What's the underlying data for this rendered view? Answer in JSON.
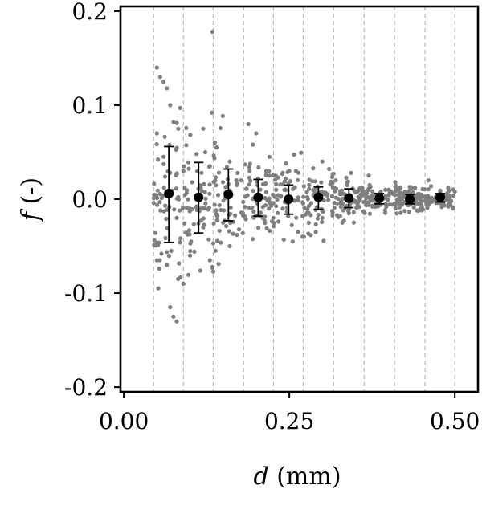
{
  "chart_data": {
    "type": "scatter",
    "xlabel": {
      "var": "d",
      "unit": "(mm)"
    },
    "ylabel": {
      "var": "f",
      "unit": "(-)"
    },
    "xlim": [
      -0.005,
      0.535
    ],
    "ylim": [
      -0.205,
      0.205
    ],
    "x_ticks": [
      {
        "value": 0.0,
        "label": "0.00"
      },
      {
        "value": 0.25,
        "label": "0.25"
      },
      {
        "value": 0.5,
        "label": "0.50"
      }
    ],
    "y_ticks": [
      {
        "value": 0.2,
        "label": "0.2"
      },
      {
        "value": 0.1,
        "label": "0.1"
      },
      {
        "value": 0.0,
        "label": "0.0"
      },
      {
        "value": -0.1,
        "label": "-0.1"
      },
      {
        "value": -0.2,
        "label": "-0.2"
      }
    ],
    "bin_edges": [
      0.045,
      0.09,
      0.135,
      0.181,
      0.226,
      0.271,
      0.317,
      0.363,
      0.409,
      0.455,
      0.5
    ],
    "binned_means": [
      {
        "x": 0.068,
        "mean": 0.006,
        "low": -0.046,
        "high": 0.056
      },
      {
        "x": 0.113,
        "mean": 0.002,
        "low": -0.036,
        "high": 0.039
      },
      {
        "x": 0.158,
        "mean": 0.005,
        "low": -0.023,
        "high": 0.032
      },
      {
        "x": 0.203,
        "mean": 0.002,
        "low": -0.018,
        "high": 0.021
      },
      {
        "x": 0.249,
        "mean": 0.0,
        "low": -0.016,
        "high": 0.015
      },
      {
        "x": 0.294,
        "mean": 0.002,
        "low": -0.011,
        "high": 0.013
      },
      {
        "x": 0.34,
        "mean": 0.001,
        "low": -0.009,
        "high": 0.011
      },
      {
        "x": 0.386,
        "mean": 0.001,
        "low": -0.005,
        "high": 0.006
      },
      {
        "x": 0.432,
        "mean": 0.0,
        "low": -0.005,
        "high": 0.005
      },
      {
        "x": 0.478,
        "mean": 0.002,
        "low": -0.003,
        "high": 0.006
      }
    ],
    "raw_points": [
      [
        0.05,
        0.14
      ],
      [
        0.055,
        0.13
      ],
      [
        0.06,
        0.125
      ],
      [
        0.065,
        0.118
      ],
      [
        0.07,
        0.1
      ],
      [
        0.085,
        0.097
      ],
      [
        0.075,
        0.082
      ],
      [
        0.08,
        0.081
      ],
      [
        0.134,
        0.178
      ],
      [
        0.133,
        0.092
      ],
      [
        0.12,
        0.075
      ],
      [
        0.14,
        0.055
      ],
      [
        0.2,
        0.07
      ],
      [
        0.05,
        -0.065
      ],
      [
        0.052,
        -0.095
      ],
      [
        0.075,
        -0.125
      ],
      [
        0.08,
        -0.13
      ],
      [
        0.07,
        -0.115
      ],
      [
        0.082,
        -0.085
      ],
      [
        0.09,
        -0.09
      ],
      [
        0.065,
        -0.07
      ],
      [
        0.1,
        -0.06
      ],
      [
        0.134,
        -0.073
      ],
      [
        0.13,
        -0.065
      ],
      [
        0.16,
        -0.05
      ],
      [
        0.255,
        -0.045
      ],
      [
        0.27,
        -0.04
      ],
      [
        0.05,
        0.07
      ],
      [
        0.06,
        0.045
      ],
      [
        0.07,
        0.028
      ],
      [
        0.08,
        -0.02
      ],
      [
        0.09,
        0.03
      ],
      [
        0.1,
        -0.01
      ],
      [
        0.11,
        0.048
      ],
      [
        0.12,
        -0.03
      ],
      [
        0.13,
        0.035
      ],
      [
        0.15,
        -0.025
      ],
      [
        0.16,
        0.04
      ],
      [
        0.17,
        0.02
      ],
      [
        0.18,
        -0.015
      ],
      [
        0.19,
        0.03
      ],
      [
        0.21,
        -0.02
      ],
      [
        0.22,
        0.025
      ],
      [
        0.23,
        0.01
      ],
      [
        0.24,
        -0.01
      ],
      [
        0.26,
        0.03
      ],
      [
        0.28,
        0.015
      ],
      [
        0.3,
        -0.02
      ],
      [
        0.32,
        0.02
      ],
      [
        0.34,
        -0.015
      ],
      [
        0.36,
        0.012
      ],
      [
        0.38,
        -0.008
      ],
      [
        0.4,
        0.01
      ],
      [
        0.42,
        -0.006
      ],
      [
        0.44,
        0.012
      ],
      [
        0.46,
        0.02
      ],
      [
        0.48,
        -0.005
      ],
      [
        0.5,
        0.008
      ],
      [
        0.195,
        0.058
      ],
      [
        0.22,
        0.045
      ],
      [
        0.245,
        0.038
      ],
      [
        0.25,
        0.03
      ],
      [
        0.31,
        0.032
      ],
      [
        0.33,
        -0.025
      ],
      [
        0.37,
        0.025
      ],
      [
        0.29,
        -0.035
      ],
      [
        0.3,
        0.04
      ],
      [
        0.41,
        0.018
      ],
      [
        0.45,
        -0.012
      ],
      [
        0.49,
        0.012
      ]
    ],
    "cloud": {
      "x_min": 0.045,
      "x_max": 0.5,
      "count": 640,
      "seed": 7
    }
  }
}
